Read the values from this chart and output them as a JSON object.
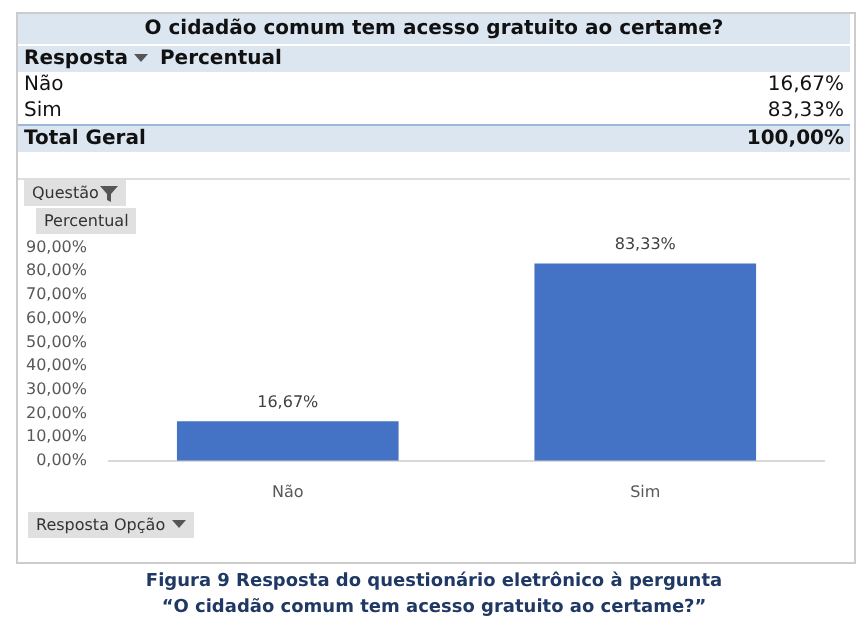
{
  "chart_data": {
    "type": "bar",
    "title": "O cidadão comum tem acesso gratuito ao certame?",
    "categories": [
      "Não",
      "Sim"
    ],
    "values": [
      16.67,
      83.33
    ],
    "value_labels": [
      "16,67%",
      "83,33%"
    ],
    "color": "#4472c4",
    "ylim": [
      0,
      90
    ],
    "yticks": [
      {
        "value": 0,
        "label": "0,00%"
      },
      {
        "value": 10,
        "label": "10,00%"
      },
      {
        "value": 20,
        "label": "20,00%"
      },
      {
        "value": 30,
        "label": "30,00%"
      },
      {
        "value": 40,
        "label": "40,00%"
      },
      {
        "value": 50,
        "label": "50,00%"
      },
      {
        "value": 60,
        "label": "60,00%"
      },
      {
        "value": 70,
        "label": "70,00%"
      },
      {
        "value": 80,
        "label": "80,00%"
      },
      {
        "value": 90,
        "label": "90,00%"
      }
    ],
    "annotations": [
      "Resposta",
      "Percentual",
      "Total Geral",
      "100,00%",
      "Questão",
      "Percentual",
      "Resposta Opção",
      "Figura 9 Resposta do questionário eletrônico à pergunta",
      "“O cidadão comum tem acesso gratuito ao certame?”"
    ]
  }
}
